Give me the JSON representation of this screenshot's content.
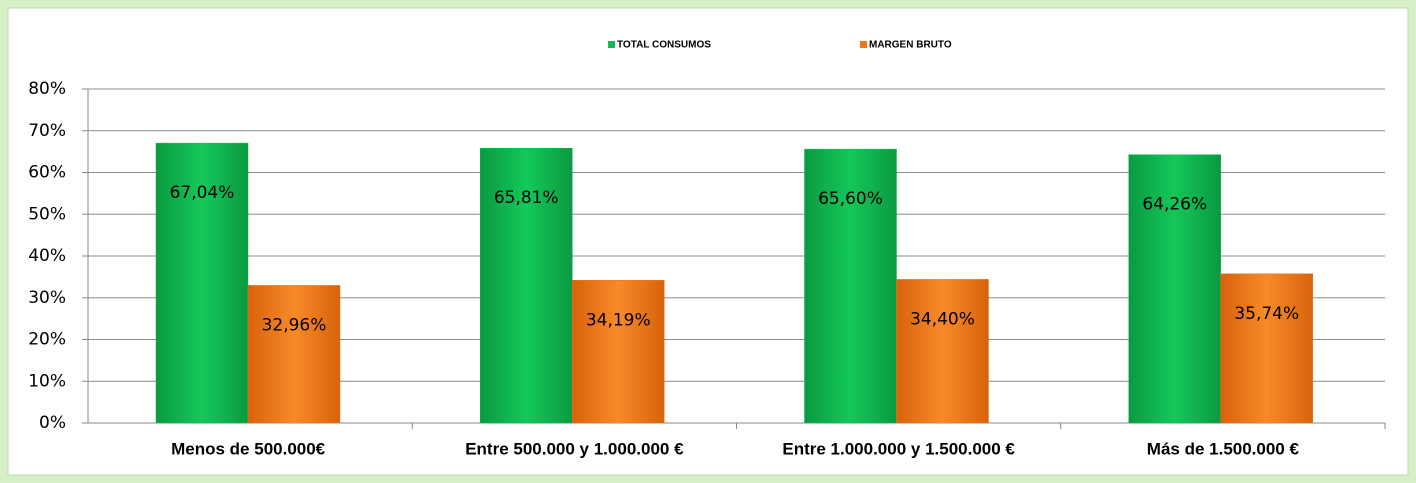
{
  "chart_data": {
    "type": "bar",
    "categories": [
      "Menos de 500.000€",
      "Entre 500.000  y 1.000.000  €",
      "Entre 1.000.000  y 1.500.000  €",
      "Más de 1.500.000  €"
    ],
    "series": [
      {
        "name": "TOTAL CONSUMOS",
        "color": "#10b850",
        "values": [
          67.04,
          65.81,
          65.6,
          64.26
        ],
        "value_labels": [
          "67,04%",
          "65,81%",
          "65,60%",
          "64,26%"
        ]
      },
      {
        "name": "MARGEN BRUTO",
        "color": "#f07818",
        "values": [
          32.96,
          34.19,
          34.4,
          35.74
        ],
        "value_labels": [
          "32,96%",
          "34,19%",
          "34,40%",
          "35,74%"
        ]
      }
    ],
    "ylim": [
      0,
      80
    ],
    "yticks": [
      {
        "value": 0,
        "label": "0%"
      },
      {
        "value": 10,
        "label": "10%"
      },
      {
        "value": 20,
        "label": "20%"
      },
      {
        "value": 30,
        "label": "30%"
      },
      {
        "value": 40,
        "label": "40%"
      },
      {
        "value": 50,
        "label": "50%"
      },
      {
        "value": 60,
        "label": "60%"
      },
      {
        "value": 70,
        "label": "70%"
      },
      {
        "value": 80,
        "label": "80%"
      }
    ],
    "grid": true,
    "legend": "top"
  }
}
